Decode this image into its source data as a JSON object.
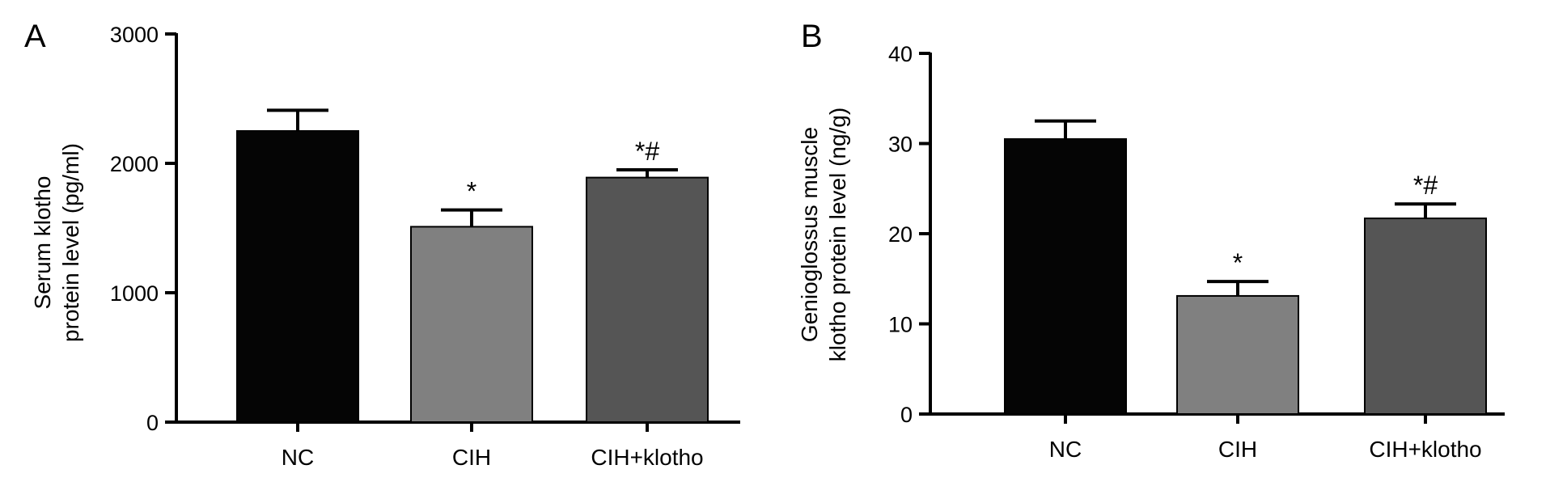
{
  "chart_data": [
    {
      "panel_label": "A",
      "type": "bar",
      "ylabel_lines": [
        "Serum klotho",
        "protein level (pg/ml)"
      ],
      "categories": [
        "NC",
        "CIH",
        "CIH+klotho"
      ],
      "values": [
        2250,
        1510,
        1890
      ],
      "errors": [
        160,
        130,
        60
      ],
      "annotations": [
        "",
        "*",
        "*#"
      ],
      "ylim": [
        0,
        3000
      ],
      "yticks": [
        0,
        1000,
        2000,
        3000
      ],
      "bar_colors": [
        "#050505",
        "#808080",
        "#555555"
      ]
    },
    {
      "panel_label": "B",
      "type": "bar",
      "ylabel_lines": [
        "Genioglossus muscle",
        "klotho protein level (ng/g)"
      ],
      "categories": [
        "NC",
        "CIH",
        "CIH+klotho"
      ],
      "values": [
        30.5,
        13.1,
        21.7
      ],
      "errors": [
        2.0,
        1.6,
        1.6
      ],
      "annotations": [
        "",
        "*",
        "*#"
      ],
      "ylim": [
        0,
        40
      ],
      "yticks": [
        0,
        10,
        20,
        30,
        40
      ],
      "bar_colors": [
        "#050505",
        "#808080",
        "#555555"
      ]
    }
  ]
}
